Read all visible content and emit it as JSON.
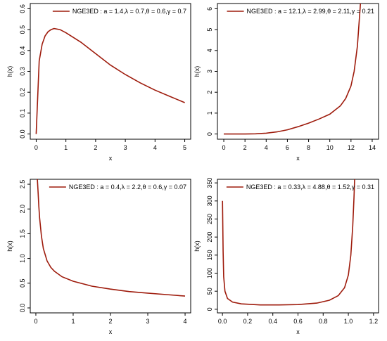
{
  "colors": {
    "curve": "#9e1b0c",
    "frame": "#000000",
    "background": "#ffffff"
  },
  "chart_data": [
    {
      "type": "line",
      "function": "hazard rate",
      "xlabel": "x",
      "ylabel": "h(x)",
      "xlim": [
        -0.2,
        5.2
      ],
      "ylim": [
        -0.025,
        0.625
      ],
      "xticks": [
        0,
        1,
        2,
        3,
        4,
        5
      ],
      "yticks": [
        0.0,
        0.1,
        0.2,
        0.3,
        0.4,
        0.5,
        0.6
      ],
      "legend": "NGE3ED : a = 1.4,λ = 0.7,θ = 0.6,γ = 0.7",
      "legend_position": "top-right",
      "grid": false,
      "series": [
        {
          "x": [
            0.0,
            0.1,
            0.2,
            0.3,
            0.4,
            0.5,
            0.6,
            0.8,
            1.0,
            1.5,
            2.0,
            2.5,
            3.0,
            3.5,
            4.0,
            4.5,
            5.0
          ],
          "y": [
            0.0,
            0.35,
            0.43,
            0.47,
            0.49,
            0.5,
            0.505,
            0.5,
            0.485,
            0.44,
            0.385,
            0.33,
            0.285,
            0.245,
            0.21,
            0.18,
            0.15
          ]
        }
      ]
    },
    {
      "type": "line",
      "function": "hazard rate",
      "xlabel": "x",
      "ylabel": "h(x)",
      "xlim": [
        -0.6,
        14.6
      ],
      "ylim": [
        -0.25,
        6.25
      ],
      "xticks": [
        0,
        2,
        4,
        6,
        8,
        10,
        12,
        14
      ],
      "yticks": [
        0,
        1,
        2,
        3,
        4,
        5,
        6
      ],
      "legend": "NGE3ED : a = 12.1,λ = 2.99,θ = 2.11,γ = 0.21",
      "legend_position": "top-right",
      "grid": false,
      "series": [
        {
          "x": [
            0,
            1,
            2,
            3,
            4,
            5,
            6,
            7,
            8,
            9,
            10,
            11,
            11.5,
            12,
            12.3,
            12.6,
            12.9
          ],
          "y": [
            0.0,
            0.0,
            0.0,
            0.01,
            0.04,
            0.1,
            0.2,
            0.35,
            0.52,
            0.72,
            0.95,
            1.35,
            1.7,
            2.3,
            3.0,
            4.2,
            6.3
          ]
        }
      ]
    },
    {
      "type": "line",
      "function": "hazard rate",
      "xlabel": "x",
      "ylabel": "h(x)",
      "xlim": [
        -0.15,
        4.15
      ],
      "ylim": [
        -0.1,
        2.6
      ],
      "xticks": [
        0,
        1,
        2,
        3,
        4
      ],
      "yticks": [
        0.0,
        0.5,
        1.0,
        1.5,
        2.0,
        2.5
      ],
      "legend": "NGE3ED : a = 0.4,λ = 2.2,θ = 0.6,γ = 0.07",
      "legend_position": "top-right",
      "grid": false,
      "series": [
        {
          "x": [
            0.04,
            0.06,
            0.08,
            0.1,
            0.15,
            0.2,
            0.3,
            0.4,
            0.5,
            0.7,
            1.0,
            1.5,
            2.0,
            2.5,
            3.0,
            3.5,
            4.0
          ],
          "y": [
            2.6,
            2.35,
            2.05,
            1.82,
            1.45,
            1.2,
            0.95,
            0.82,
            0.74,
            0.63,
            0.54,
            0.44,
            0.38,
            0.33,
            0.3,
            0.27,
            0.24
          ]
        }
      ]
    },
    {
      "type": "line",
      "function": "hazard rate",
      "xlabel": "x",
      "ylabel": "h(x)",
      "xlim": [
        -0.04,
        1.24
      ],
      "ylim": [
        -10,
        360
      ],
      "xticks": [
        0.0,
        0.2,
        0.4,
        0.6,
        0.8,
        1.0,
        1.2
      ],
      "yticks": [
        0,
        50,
        100,
        150,
        200,
        250,
        300,
        350
      ],
      "legend": "NGE3ED : a = 0.33,λ = 4.88,θ = 1.52,γ = 0.31",
      "legend_position": "top-right",
      "grid": false,
      "series": [
        {
          "x": [
            0.0,
            0.005,
            0.01,
            0.02,
            0.04,
            0.08,
            0.15,
            0.3,
            0.45,
            0.6,
            0.75,
            0.85,
            0.92,
            0.97,
            1.0,
            1.02,
            1.035,
            1.045,
            1.05
          ],
          "y": [
            300,
            160,
            90,
            50,
            30,
            20,
            15,
            12,
            12,
            13,
            17,
            25,
            38,
            60,
            95,
            150,
            230,
            310,
            360
          ]
        }
      ]
    }
  ]
}
